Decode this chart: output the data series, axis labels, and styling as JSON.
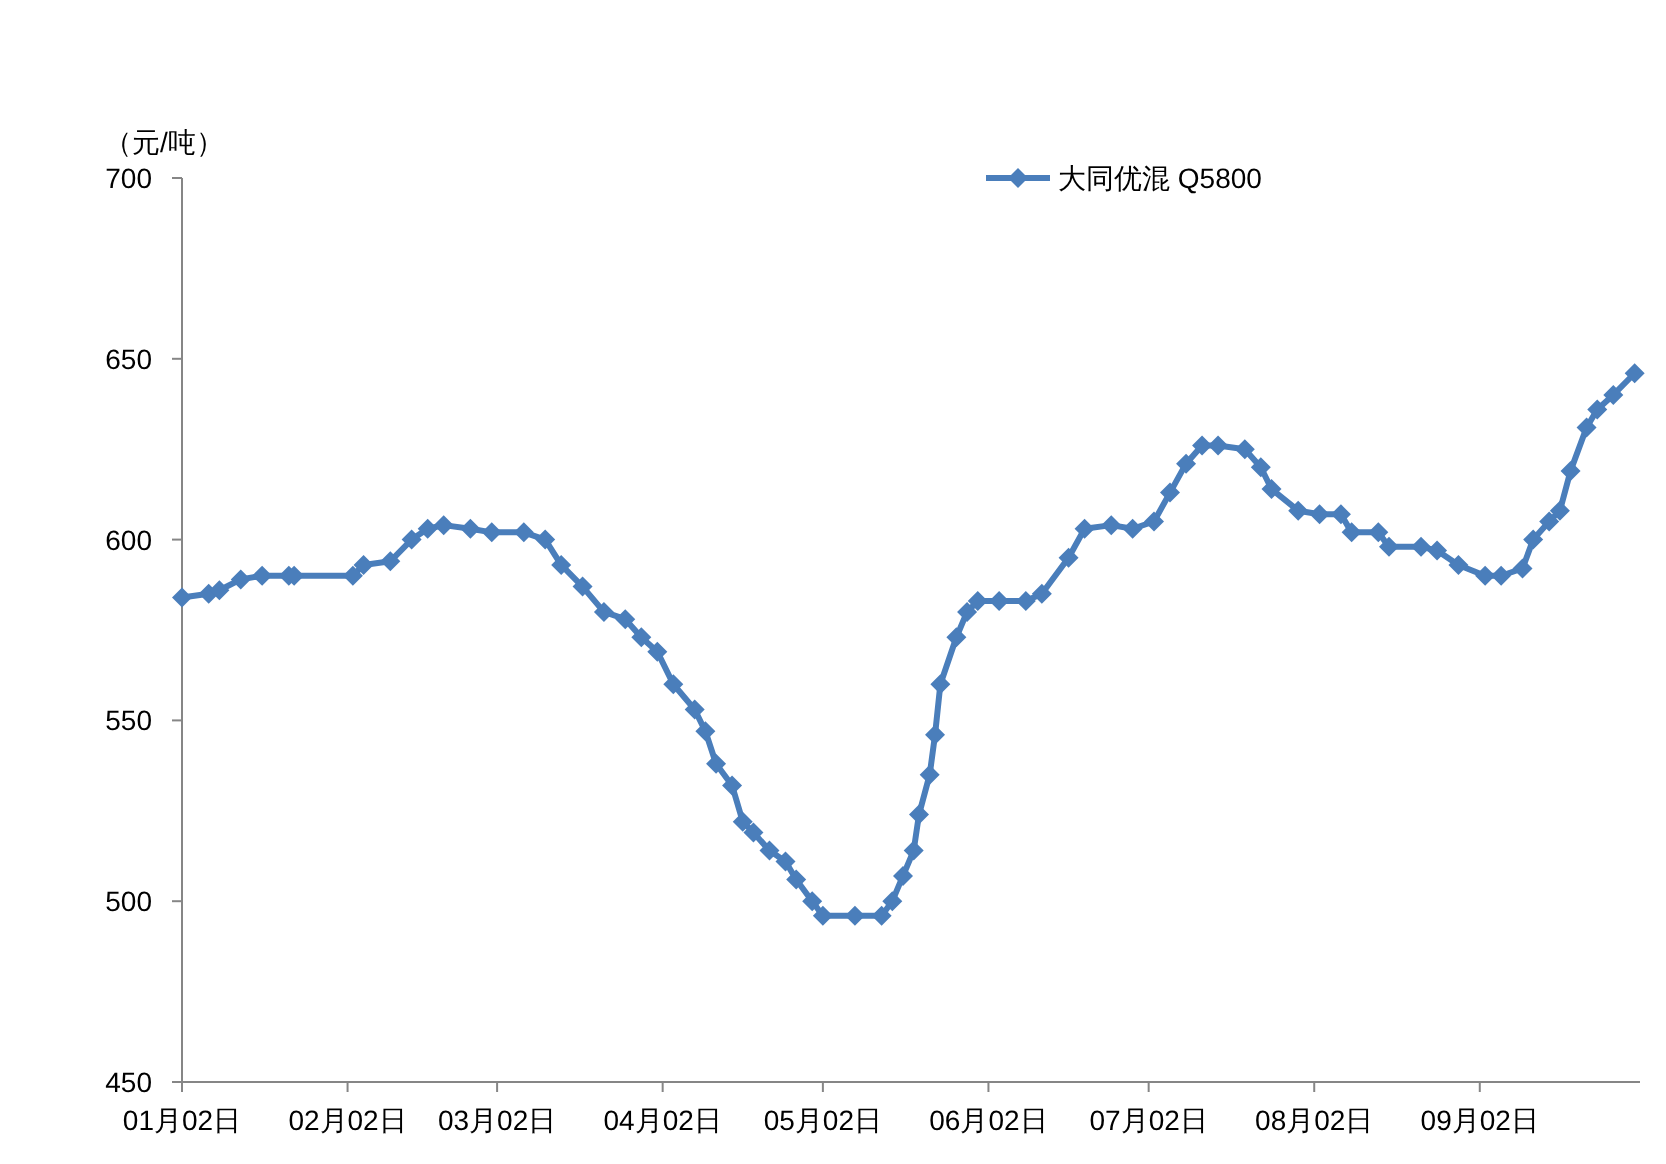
{
  "chart_data": {
    "type": "line",
    "ylabel": "（元/吨）",
    "legend": "top",
    "marker": "diamond",
    "line_style": "solid",
    "grid": false,
    "x": [
      "--01-02",
      "--01-07",
      "--01-09",
      "--01-13",
      "--01-17",
      "--01-22",
      "--01-23",
      "--02-03",
      "--02-05",
      "--02-10",
      "--02-14",
      "--02-17",
      "--02-20",
      "--02-25",
      "--03-01",
      "--03-07",
      "--03-11",
      "--03-14",
      "--03-18",
      "--03-22",
      "--03-26",
      "--03-29",
      "--04-01",
      "--04-04",
      "--04-08",
      "--04-10",
      "--04-12",
      "--04-15",
      "--04-17",
      "--04-19",
      "--04-22",
      "--04-25",
      "--04-27",
      "--04-30",
      "--05-02",
      "--05-08",
      "--05-13",
      "--05-15",
      "--05-17",
      "--05-19",
      "--05-20",
      "--05-22",
      "--05-23",
      "--05-24",
      "--05-27",
      "--05-29",
      "--05-31",
      "--06-04",
      "--06-09",
      "--06-12",
      "--06-17",
      "--06-20",
      "--06-25",
      "--06-29",
      "--07-03",
      "--07-06",
      "--07-09",
      "--07-12",
      "--07-15",
      "--07-20",
      "--07-23",
      "--07-25",
      "--07-30",
      "--08-03",
      "--08-07",
      "--08-09",
      "--08-14",
      "--08-16",
      "--08-22",
      "--08-25",
      "--08-29",
      "--09-03",
      "--09-06",
      "--09-10",
      "--09-12",
      "--09-15",
      "--09-17",
      "--09-19",
      "--09-22",
      "--09-24",
      "--09-27",
      "--10-01"
    ],
    "series": [
      {
        "name": "大同优混 Q5800",
        "color": "#4a7ebb",
        "values": [
          584,
          585,
          586,
          589,
          590,
          590,
          590,
          590,
          593,
          594,
          600,
          603,
          604,
          603,
          602,
          602,
          600,
          593,
          587,
          580,
          578,
          573,
          569,
          560,
          553,
          547,
          538,
          532,
          522,
          519,
          514,
          511,
          506,
          500,
          496,
          496,
          496,
          500,
          507,
          514,
          524,
          535,
          546,
          560,
          573,
          580,
          583,
          583,
          583,
          585,
          595,
          603,
          604,
          603,
          605,
          613,
          621,
          626,
          626,
          625,
          620,
          614,
          608,
          607,
          607,
          602,
          602,
          598,
          598,
          597,
          593,
          590,
          590,
          592,
          600,
          605,
          608,
          619,
          631,
          636,
          640,
          646
        ]
      }
    ],
    "xlim": [
      "--01-02",
      "--10-02"
    ],
    "xticks": [
      {
        "value": "--01-02",
        "label": "01月02日"
      },
      {
        "value": "--02-02",
        "label": "02月02日"
      },
      {
        "value": "--03-02",
        "label": "03月02日"
      },
      {
        "value": "--04-02",
        "label": "04月02日"
      },
      {
        "value": "--05-02",
        "label": "05月02日"
      },
      {
        "value": "--06-02",
        "label": "06月02日"
      },
      {
        "value": "--07-02",
        "label": "07月02日"
      },
      {
        "value": "--08-02",
        "label": "08月02日"
      },
      {
        "value": "--09-02",
        "label": "09月02日"
      }
    ],
    "ylim": [
      450,
      700
    ],
    "yticks": [
      450,
      500,
      550,
      600,
      650,
      700
    ]
  }
}
